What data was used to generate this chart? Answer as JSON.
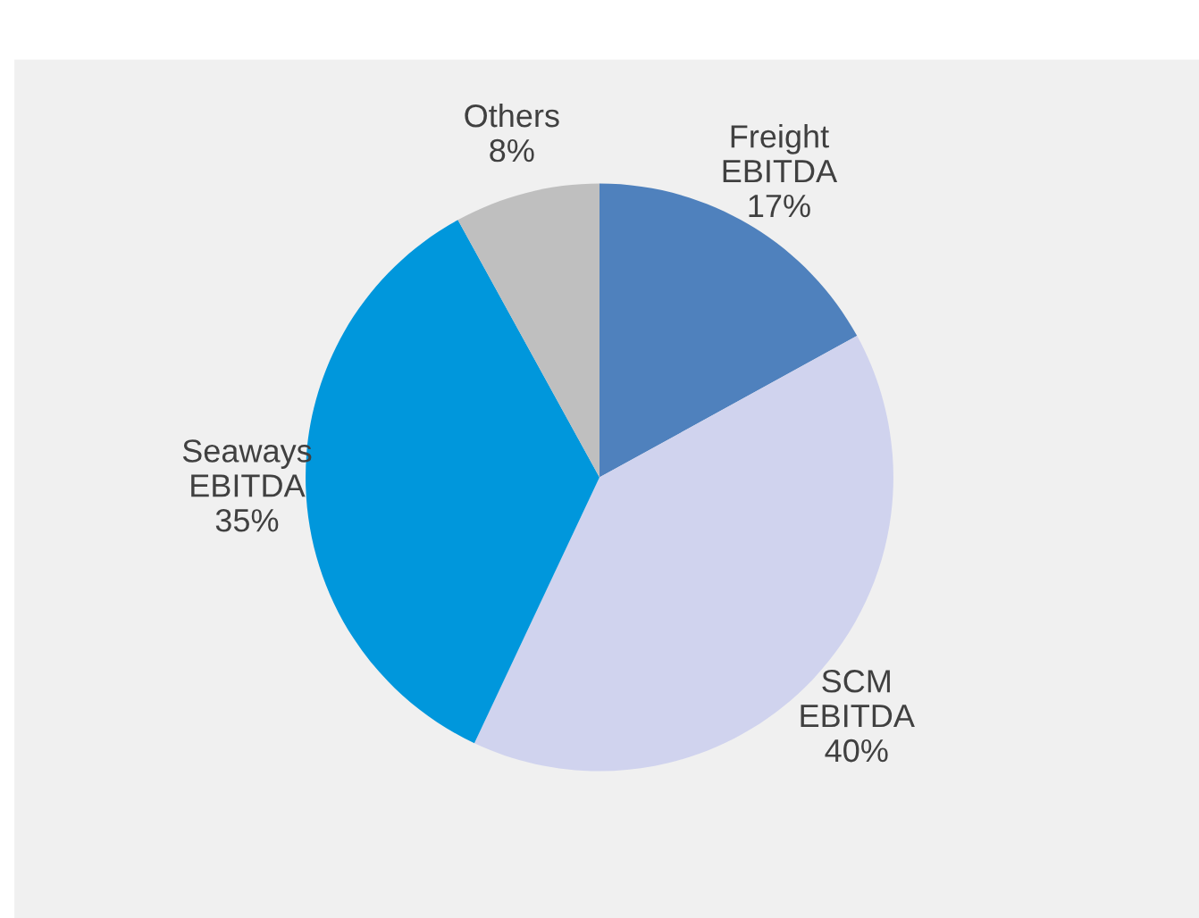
{
  "chart_data": {
    "type": "pie",
    "categories": [
      "Freight\nEBITDA",
      "SCM\nEBITDA",
      "Seaways\nEBITDA",
      "Others"
    ],
    "values": [
      17,
      40,
      35,
      8
    ],
    "colors": [
      "#4f81bd",
      "#d0d3ee",
      "#0097dc",
      "#bfbfbf"
    ],
    "value_labels": [
      "17%",
      "40%",
      "35%",
      "8%"
    ],
    "legend": false
  }
}
